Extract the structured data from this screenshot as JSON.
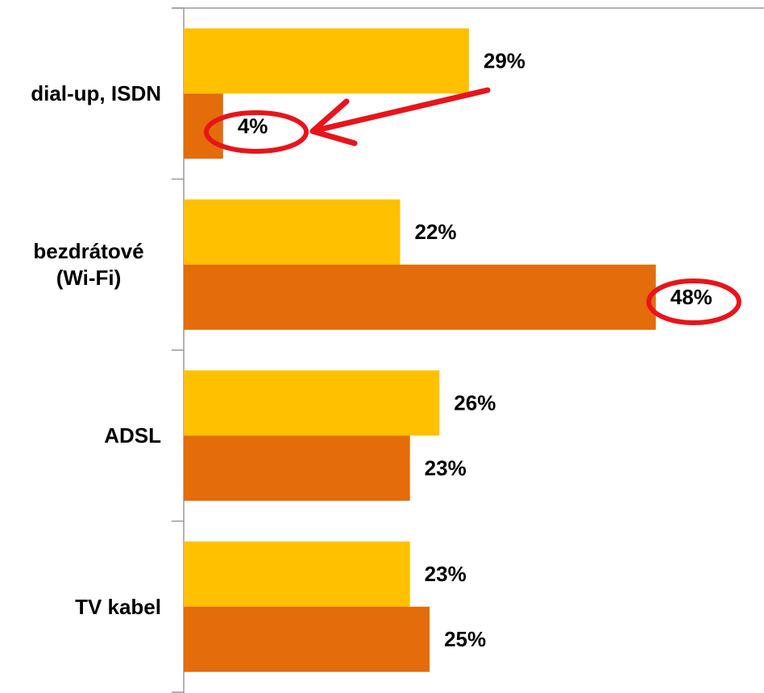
{
  "chart_data": {
    "type": "bar",
    "orientation": "horizontal",
    "categories": [
      "dial-up, ISDN",
      "bezdrátové (Wi-Fi)",
      "ADSL",
      "TV kabel"
    ],
    "series": [
      {
        "color": "#FFC000",
        "values": [
          29,
          22,
          26,
          23
        ],
        "value_labels": [
          "29%",
          "22%",
          "26%",
          "23%"
        ]
      },
      {
        "color": "#E46C0A",
        "values": [
          4,
          48,
          23,
          25
        ],
        "value_labels": [
          "4%",
          "48%",
          "23%",
          "25%"
        ]
      }
    ],
    "xlim": [
      0,
      59
    ]
  }
}
